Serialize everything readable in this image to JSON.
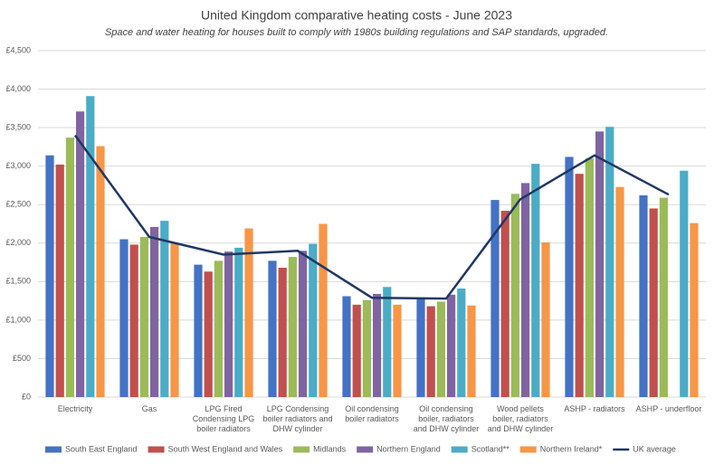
{
  "chart_data": {
    "type": "bar",
    "title": "United Kingdom comparative heating costs - June 2023",
    "subtitle": "Space and water heating for houses built to comply with 1980s building regulations and SAP standards, upgraded.",
    "categories": [
      "Electricity",
      "Gas",
      "LPG Fired Condensing LPG boiler radiators",
      "LPG Condensing boiler radiators and DHW cylinder",
      "Oil condensing boiler radiators",
      "Oil condensing boiler, radiators and DHW cylinder",
      "Wood pellets boiler, radiators and DHW cylinder",
      "ASHP - radiators",
      "ASHP -  underfloor"
    ],
    "series": [
      {
        "name": "South East England",
        "color": "#4472c4",
        "values": [
          3140,
          2050,
          1720,
          1770,
          1310,
          1290,
          2560,
          3120,
          2620
        ]
      },
      {
        "name": "South West England and Wales",
        "color": "#c0504d",
        "values": [
          3020,
          1980,
          1630,
          1680,
          1200,
          1180,
          2420,
          2900,
          2450
        ]
      },
      {
        "name": "Midlands",
        "color": "#9bbb59",
        "values": [
          3370,
          2080,
          1770,
          1820,
          1260,
          1240,
          2640,
          3100,
          2590
        ]
      },
      {
        "name": "Northern England",
        "color": "#8064a2",
        "values": [
          3710,
          2210,
          1890,
          1900,
          1340,
          1330,
          2780,
          3450,
          null
        ]
      },
      {
        "name": "Scotland**",
        "color": "#4bacc6",
        "values": [
          3910,
          2290,
          1940,
          1990,
          1430,
          1410,
          3030,
          3510,
          2940
        ]
      },
      {
        "name": "Northern Ireland*",
        "color": "#f79646",
        "values": [
          3260,
          2000,
          2190,
          2250,
          1200,
          1190,
          2010,
          2730,
          2260
        ]
      },
      {
        "name": "UK average",
        "color": "#1f3864",
        "type": "line",
        "values": [
          3400,
          2080,
          1850,
          1900,
          1290,
          1280,
          2570,
          3140,
          2630
        ]
      }
    ],
    "ylim": [
      0,
      4500
    ],
    "yticks": [
      {
        "value": 0,
        "label": "£0"
      },
      {
        "value": 500,
        "label": "£500"
      },
      {
        "value": 1000,
        "label": "£1,000"
      },
      {
        "value": 1500,
        "label": "£1,500"
      },
      {
        "value": 2000,
        "label": "£2,000"
      },
      {
        "value": 2500,
        "label": "£2,500"
      },
      {
        "value": 3000,
        "label": "£3,000"
      },
      {
        "value": 3500,
        "label": "£3,500"
      },
      {
        "value": 4000,
        "label": "£4,000"
      },
      {
        "value": 4500,
        "label": "£4,500"
      }
    ],
    "grid": true
  }
}
